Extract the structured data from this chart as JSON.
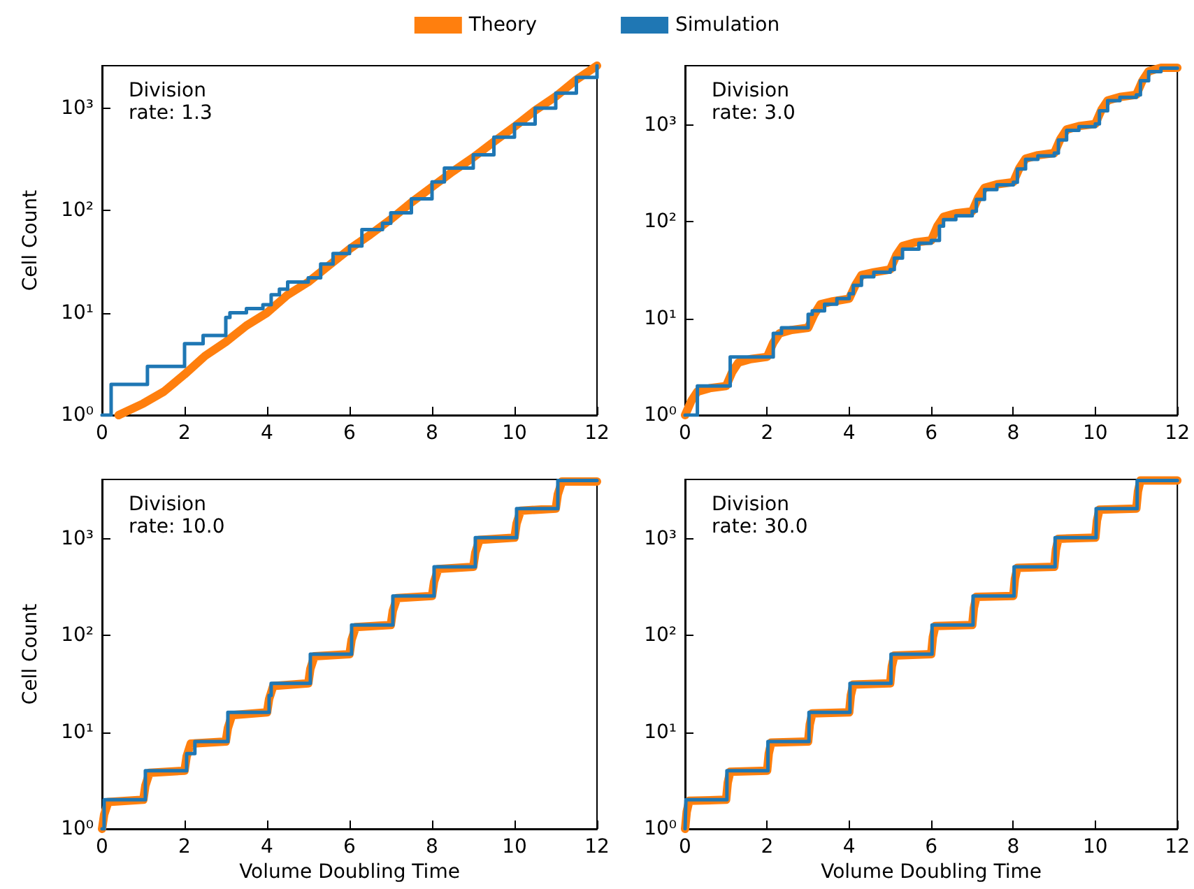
{
  "chart_data": [
    {
      "type": "line",
      "ylabel": "Cell Count",
      "log": true,
      "legend": "top",
      "annotations": [
        "Division\nrate: 1.3"
      ],
      "xlim": [
        0,
        12
      ],
      "xticks": [
        0,
        2,
        4,
        6,
        8,
        10,
        12
      ],
      "ylim": [
        1,
        2600
      ],
      "yticks": [
        {
          "value": 1,
          "label": "10⁰"
        },
        {
          "value": 10,
          "label": "10¹"
        },
        {
          "value": 100,
          "label": "10²"
        },
        {
          "value": 1000,
          "label": "10³"
        }
      ],
      "series": [
        {
          "name": "Theory",
          "color": "#ff7f0e",
          "x": [
            0.4,
            1,
            1.5,
            2,
            2.5,
            3,
            3.5,
            4,
            4.5,
            5,
            5.5,
            6,
            6.5,
            7,
            7.5,
            8,
            8.5,
            9,
            9.5,
            10,
            10.5,
            11,
            11.5,
            12
          ],
          "values": [
            1,
            1.3,
            1.7,
            2.5,
            3.8,
            5.2,
            7.5,
            10,
            15,
            20,
            29,
            42,
            58,
            82,
            120,
            170,
            240,
            330,
            470,
            660,
            950,
            1300,
            1900,
            2600
          ]
        },
        {
          "name": "Simulation",
          "type": "step",
          "color": "#1f77b4",
          "x": [
            0,
            0.22,
            1.1,
            2,
            2.45,
            3,
            3.1,
            3.5,
            3.9,
            4.1,
            4.3,
            4.5,
            5,
            5.3,
            5.6,
            6,
            6.3,
            6.8,
            7,
            7.5,
            8,
            8.3,
            9,
            9.5,
            10,
            10.5,
            11,
            11.5,
            12
          ],
          "values": [
            1,
            2,
            3,
            5,
            6,
            9,
            10,
            11,
            12,
            15,
            17,
            20,
            22,
            30,
            38,
            45,
            65,
            75,
            95,
            130,
            190,
            260,
            350,
            520,
            700,
            1000,
            1400,
            2000,
            2600
          ]
        }
      ]
    },
    {
      "type": "line",
      "log": true,
      "annotations": [
        "Division\nrate: 3.0"
      ],
      "xlim": [
        0,
        12
      ],
      "xticks": [
        0,
        2,
        4,
        6,
        8,
        10,
        12
      ],
      "ylim": [
        1,
        4096
      ],
      "yticks": [
        {
          "value": 1,
          "label": "10⁰"
        },
        {
          "value": 10,
          "label": "10¹"
        },
        {
          "value": 100,
          "label": "10²"
        },
        {
          "value": 1000,
          "label": "10³"
        }
      ],
      "series": [
        {
          "color": "#ff7f0e",
          "x": [
            0,
            0.15,
            0.3,
            0.6,
            1,
            1.15,
            1.3,
            1.6,
            2,
            2.15,
            2.3,
            2.6,
            3,
            3.15,
            3.3,
            3.6,
            4,
            4.15,
            4.3,
            4.6,
            5,
            5.15,
            5.3,
            5.6,
            6,
            6.15,
            6.3,
            6.6,
            7,
            7.15,
            7.3,
            7.6,
            8,
            8.15,
            8.3,
            8.6,
            9,
            9.15,
            9.3,
            9.6,
            10,
            10.15,
            10.3,
            10.6,
            11,
            11.15,
            11.3,
            11.6,
            12
          ],
          "values": [
            1,
            1.4,
            1.75,
            1.9,
            2,
            2.8,
            3.5,
            3.8,
            4,
            5.6,
            7,
            7.6,
            8,
            11,
            14,
            15,
            16,
            22,
            28,
            30,
            32,
            45,
            56,
            61,
            64,
            90,
            112,
            122,
            128,
            179,
            224,
            243,
            256,
            358,
            448,
            486,
            512,
            717,
            896,
            973,
            1024,
            1434,
            1792,
            1946,
            2048,
            2867,
            3584,
            3891,
            3891
          ]
        },
        {
          "type": "step",
          "color": "#1f77b4",
          "x": [
            0,
            0.3,
            1.1,
            2.15,
            2.35,
            3,
            3.1,
            3.4,
            3.7,
            4,
            4.1,
            4.3,
            4.6,
            5,
            5.1,
            5.3,
            5.7,
            6,
            6.2,
            6.3,
            6.6,
            7,
            7.1,
            7.3,
            7.6,
            8,
            8.1,
            8.3,
            8.6,
            9,
            9.1,
            9.3,
            9.6,
            10,
            10.1,
            10.3,
            10.6,
            11,
            11.1,
            11.3,
            11.6,
            12
          ],
          "values": [
            1,
            2,
            4,
            7,
            8,
            11,
            12,
            14,
            16,
            18,
            22,
            27,
            30,
            32,
            42,
            52,
            60,
            64,
            90,
            105,
            115,
            128,
            170,
            215,
            240,
            256,
            350,
            440,
            480,
            512,
            700,
            880,
            960,
            1024,
            1400,
            1780,
            1930,
            2048,
            2860,
            3560,
            3870,
            3870
          ]
        }
      ]
    },
    {
      "type": "line",
      "xlabel": "Volume Doubling Time",
      "ylabel": "Cell Count",
      "log": true,
      "annotations": [
        "Division\nrate: 10.0"
      ],
      "xlim": [
        0,
        12
      ],
      "xticks": [
        0,
        2,
        4,
        6,
        8,
        10,
        12
      ],
      "ylim": [
        1,
        4096
      ],
      "yticks": [
        {
          "value": 1,
          "label": "10⁰"
        },
        {
          "value": 10,
          "label": "10¹"
        },
        {
          "value": 100,
          "label": "10²"
        },
        {
          "value": 1000,
          "label": "10³"
        }
      ],
      "series": [
        {
          "color": "#ff7f0e",
          "x": [
            0,
            0.05,
            0.15,
            1,
            1.05,
            1.15,
            2,
            2.05,
            2.15,
            3,
            3.05,
            3.15,
            4,
            4.05,
            4.15,
            5,
            5.05,
            5.15,
            6,
            6.05,
            6.15,
            7,
            7.05,
            7.15,
            8,
            8.05,
            8.15,
            9,
            9.05,
            9.15,
            10,
            10.05,
            10.15,
            11,
            11.05,
            11.15,
            12
          ],
          "values": [
            1,
            1.4,
            1.9,
            2,
            2.8,
            3.8,
            4,
            5.6,
            7.6,
            8,
            11,
            15,
            16,
            22,
            30,
            32,
            45,
            61,
            64,
            90,
            122,
            128,
            180,
            243,
            256,
            358,
            486,
            512,
            717,
            973,
            1024,
            1434,
            1946,
            2048,
            2867,
            3891,
            3891
          ]
        },
        {
          "type": "step",
          "color": "#1f77b4",
          "x": [
            0,
            0.05,
            1.05,
            2.05,
            2.25,
            3.05,
            4.05,
            4.1,
            5.05,
            6.05,
            7.05,
            8.05,
            9.05,
            10.05,
            11.05,
            12
          ],
          "values": [
            1,
            2,
            4,
            6,
            8,
            16,
            24,
            32,
            64,
            128,
            256,
            512,
            1024,
            2048,
            4000,
            4000
          ]
        }
      ]
    },
    {
      "type": "line",
      "xlabel": "Volume Doubling Time",
      "log": true,
      "annotations": [
        "Division\nrate: 30.0"
      ],
      "xlim": [
        0,
        12
      ],
      "xticks": [
        0,
        2,
        4,
        6,
        8,
        10,
        12
      ],
      "ylim": [
        1,
        4096
      ],
      "yticks": [
        {
          "value": 1,
          "label": "10⁰"
        },
        {
          "value": 10,
          "label": "10¹"
        },
        {
          "value": 100,
          "label": "10²"
        },
        {
          "value": 1000,
          "label": "10³"
        }
      ],
      "series": [
        {
          "color": "#ff7f0e",
          "x": [
            0,
            0.04,
            0.1,
            1,
            1.04,
            1.1,
            2,
            2.04,
            2.1,
            3,
            3.04,
            3.1,
            4,
            4.04,
            4.1,
            5,
            5.04,
            5.1,
            6,
            6.04,
            6.1,
            7,
            7.04,
            7.1,
            8,
            8.04,
            8.1,
            9,
            9.04,
            9.1,
            10,
            10.04,
            10.1,
            11,
            11.04,
            11.1,
            12
          ],
          "values": [
            1,
            1.5,
            1.95,
            2,
            3,
            3.9,
            4,
            6,
            7.8,
            8,
            12,
            15.6,
            16,
            24,
            31,
            32,
            48,
            62,
            64,
            96,
            125,
            128,
            192,
            250,
            256,
            384,
            499,
            512,
            768,
            998,
            1024,
            1536,
            1997,
            2048,
            3072,
            3994,
            3994
          ]
        },
        {
          "type": "step",
          "color": "#1f77b4",
          "x": [
            0,
            0.02,
            1.02,
            2.02,
            3.02,
            4.02,
            5.02,
            6.02,
            7.02,
            8.02,
            9.02,
            10.02,
            11.02,
            12
          ],
          "values": [
            1,
            2,
            4,
            8,
            16,
            32,
            64,
            128,
            256,
            512,
            1024,
            2048,
            4000,
            4000
          ]
        }
      ]
    }
  ]
}
